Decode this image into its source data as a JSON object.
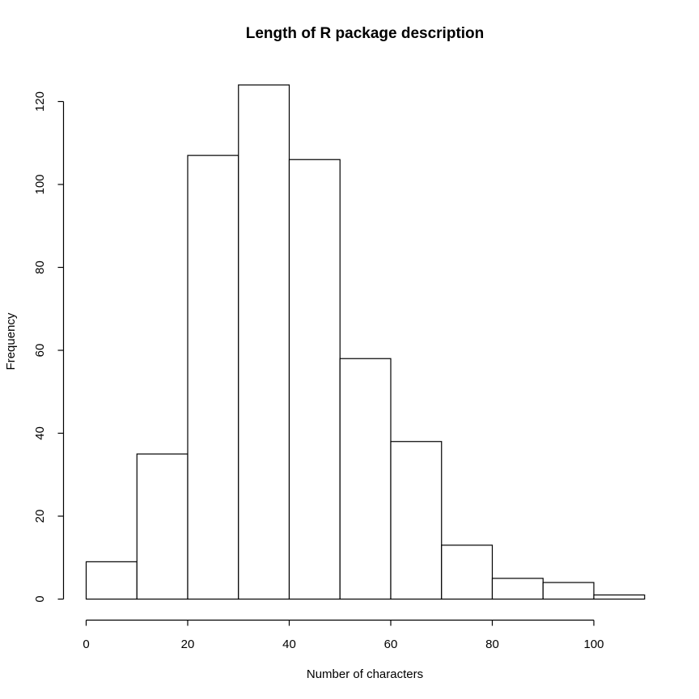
{
  "chart_data": {
    "type": "histogram",
    "title": "Length of R package description",
    "xlabel": "Number of characters",
    "ylabel": "Frequency",
    "bins": [
      {
        "start": 0,
        "end": 10,
        "count": 9
      },
      {
        "start": 10,
        "end": 20,
        "count": 35
      },
      {
        "start": 20,
        "end": 30,
        "count": 107
      },
      {
        "start": 30,
        "end": 40,
        "count": 124
      },
      {
        "start": 40,
        "end": 50,
        "count": 106
      },
      {
        "start": 50,
        "end": 60,
        "count": 58
      },
      {
        "start": 60,
        "end": 70,
        "count": 38
      },
      {
        "start": 70,
        "end": 80,
        "count": 13
      },
      {
        "start": 80,
        "end": 90,
        "count": 5
      },
      {
        "start": 90,
        "end": 100,
        "count": 4
      },
      {
        "start": 100,
        "end": 110,
        "count": 1
      }
    ],
    "xticks": [
      0,
      20,
      40,
      60,
      80,
      100
    ],
    "yticks": [
      0,
      20,
      40,
      60,
      80,
      100,
      120
    ],
    "xlim": [
      0,
      110
    ],
    "ylim": [
      0,
      124
    ],
    "grid": false,
    "legend": "none"
  }
}
